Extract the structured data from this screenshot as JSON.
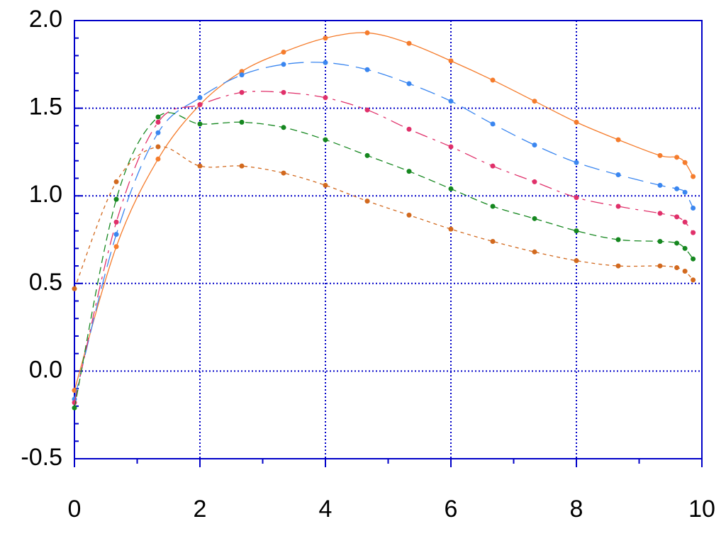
{
  "chart_data": {
    "type": "line",
    "x": [
      0,
      0.667,
      1.333,
      2,
      2.667,
      3.333,
      4,
      4.667,
      5.333,
      6,
      6.667,
      7.333,
      8,
      8.667,
      9.333,
      9.6,
      9.73,
      9.86
    ],
    "series": [
      {
        "color": "#f57c2c",
        "dash": "none",
        "values": [
          -0.11,
          0.71,
          1.21,
          1.52,
          1.71,
          1.82,
          1.9,
          1.93,
          1.87,
          1.77,
          1.66,
          1.54,
          1.42,
          1.32,
          1.23,
          1.22,
          1.19,
          1.11
        ]
      },
      {
        "color": "#3a86f0",
        "dash": "22 10",
        "values": [
          -0.16,
          0.78,
          1.36,
          1.56,
          1.69,
          1.75,
          1.76,
          1.72,
          1.64,
          1.54,
          1.41,
          1.29,
          1.19,
          1.12,
          1.06,
          1.04,
          1.02,
          0.93
        ]
      },
      {
        "color": "#e0306a",
        "dash": "18 8 4 8",
        "values": [
          -0.18,
          0.85,
          1.42,
          1.52,
          1.59,
          1.59,
          1.56,
          1.49,
          1.38,
          1.28,
          1.17,
          1.08,
          0.99,
          0.94,
          0.9,
          0.88,
          0.85,
          0.79
        ]
      },
      {
        "color": "#15871f",
        "dash": "10 6",
        "values": [
          -0.21,
          0.98,
          1.45,
          1.41,
          1.42,
          1.39,
          1.32,
          1.23,
          1.14,
          1.04,
          0.94,
          0.87,
          0.8,
          0.75,
          0.74,
          0.73,
          0.7,
          0.64
        ]
      },
      {
        "color": "#d2691e",
        "dash": "5 5",
        "values": [
          0.47,
          1.08,
          1.28,
          1.17,
          1.17,
          1.13,
          1.06,
          0.97,
          0.89,
          0.81,
          0.74,
          0.68,
          0.63,
          0.6,
          0.6,
          0.59,
          0.57,
          0.52
        ]
      }
    ],
    "xlim": [
      0,
      10
    ],
    "xticks": [
      0,
      2,
      4,
      6,
      8,
      10
    ],
    "xminor": [
      1,
      3,
      5,
      7,
      9
    ],
    "ylim": [
      -0.5,
      2.0
    ],
    "yticks": [
      {
        "value": -0.5,
        "label": "-0.5"
      },
      {
        "value": 0,
        "label": "0.0"
      },
      {
        "value": 0.5,
        "label": "0.5"
      },
      {
        "value": 1,
        "label": "1.0"
      },
      {
        "value": 1.5,
        "label": "1.5"
      },
      {
        "value": 2,
        "label": "2.0"
      }
    ],
    "yminor": [
      -0.4,
      -0.3,
      -0.2,
      -0.1,
      0.1,
      0.2,
      0.3,
      0.4,
      0.6,
      0.7,
      0.8,
      0.9,
      1.1,
      1.2,
      1.3,
      1.4,
      1.6,
      1.7,
      1.8,
      1.9
    ],
    "grid": true,
    "axis_color": "#0000c8"
  }
}
